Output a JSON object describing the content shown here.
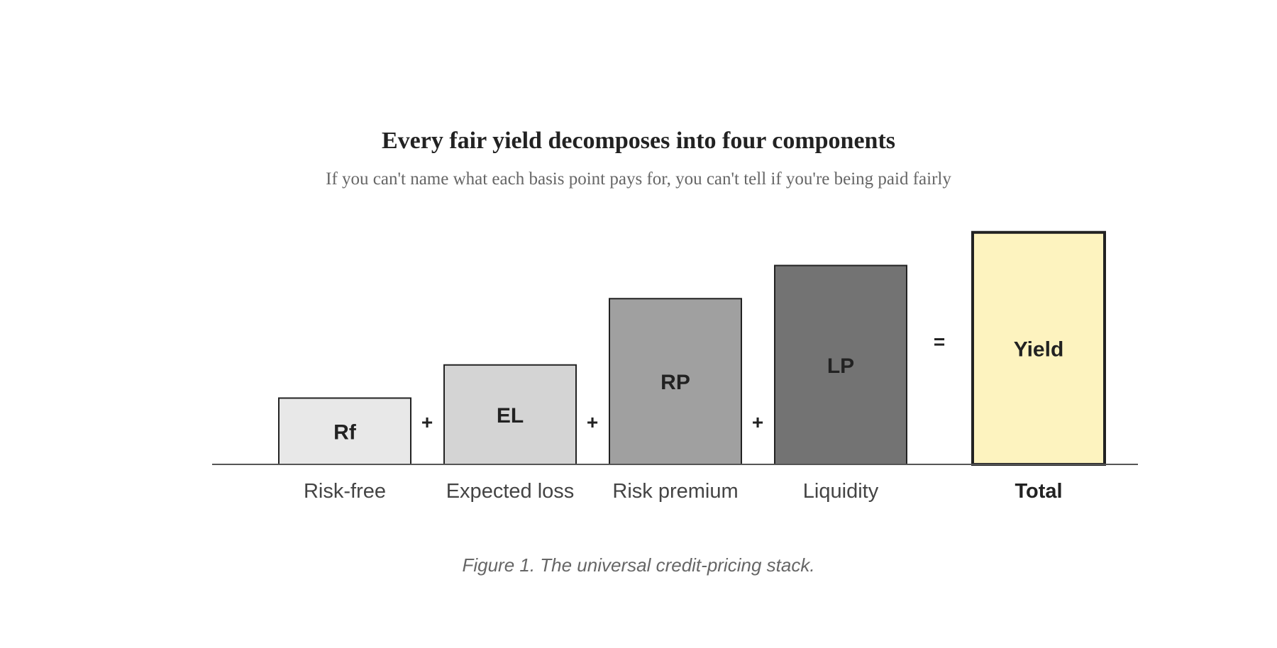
{
  "figure": {
    "title": "Every fair yield decomposes into four components",
    "subtitle": "If you can't name what each basis point pays for, you can't tell if you're being paid fairly",
    "caption": "Figure 1. The universal credit-pricing stack."
  },
  "chart_data": {
    "type": "bar",
    "title": "Every fair yield decomposes into four components",
    "subtitle": "If you can't name what each basis point pays for, you can't tell if you're being paid fairly",
    "categories": [
      "Risk-free",
      "Expected loss",
      "Risk premium",
      "Liquidity",
      "Total"
    ],
    "codes": [
      "Rf",
      "EL",
      "RP",
      "LP",
      "Yield"
    ],
    "values": [
      1,
      1.5,
      2.5,
      3,
      3.5
    ],
    "operators": [
      "+",
      "+",
      "+",
      "="
    ],
    "colors": [
      "#e8e8e8",
      "#d4d4d4",
      "#a0a0a0",
      "#737373",
      "#fdf3bf"
    ],
    "emphasis": [
      false,
      false,
      false,
      false,
      true
    ],
    "grid": false,
    "legend": "none"
  }
}
